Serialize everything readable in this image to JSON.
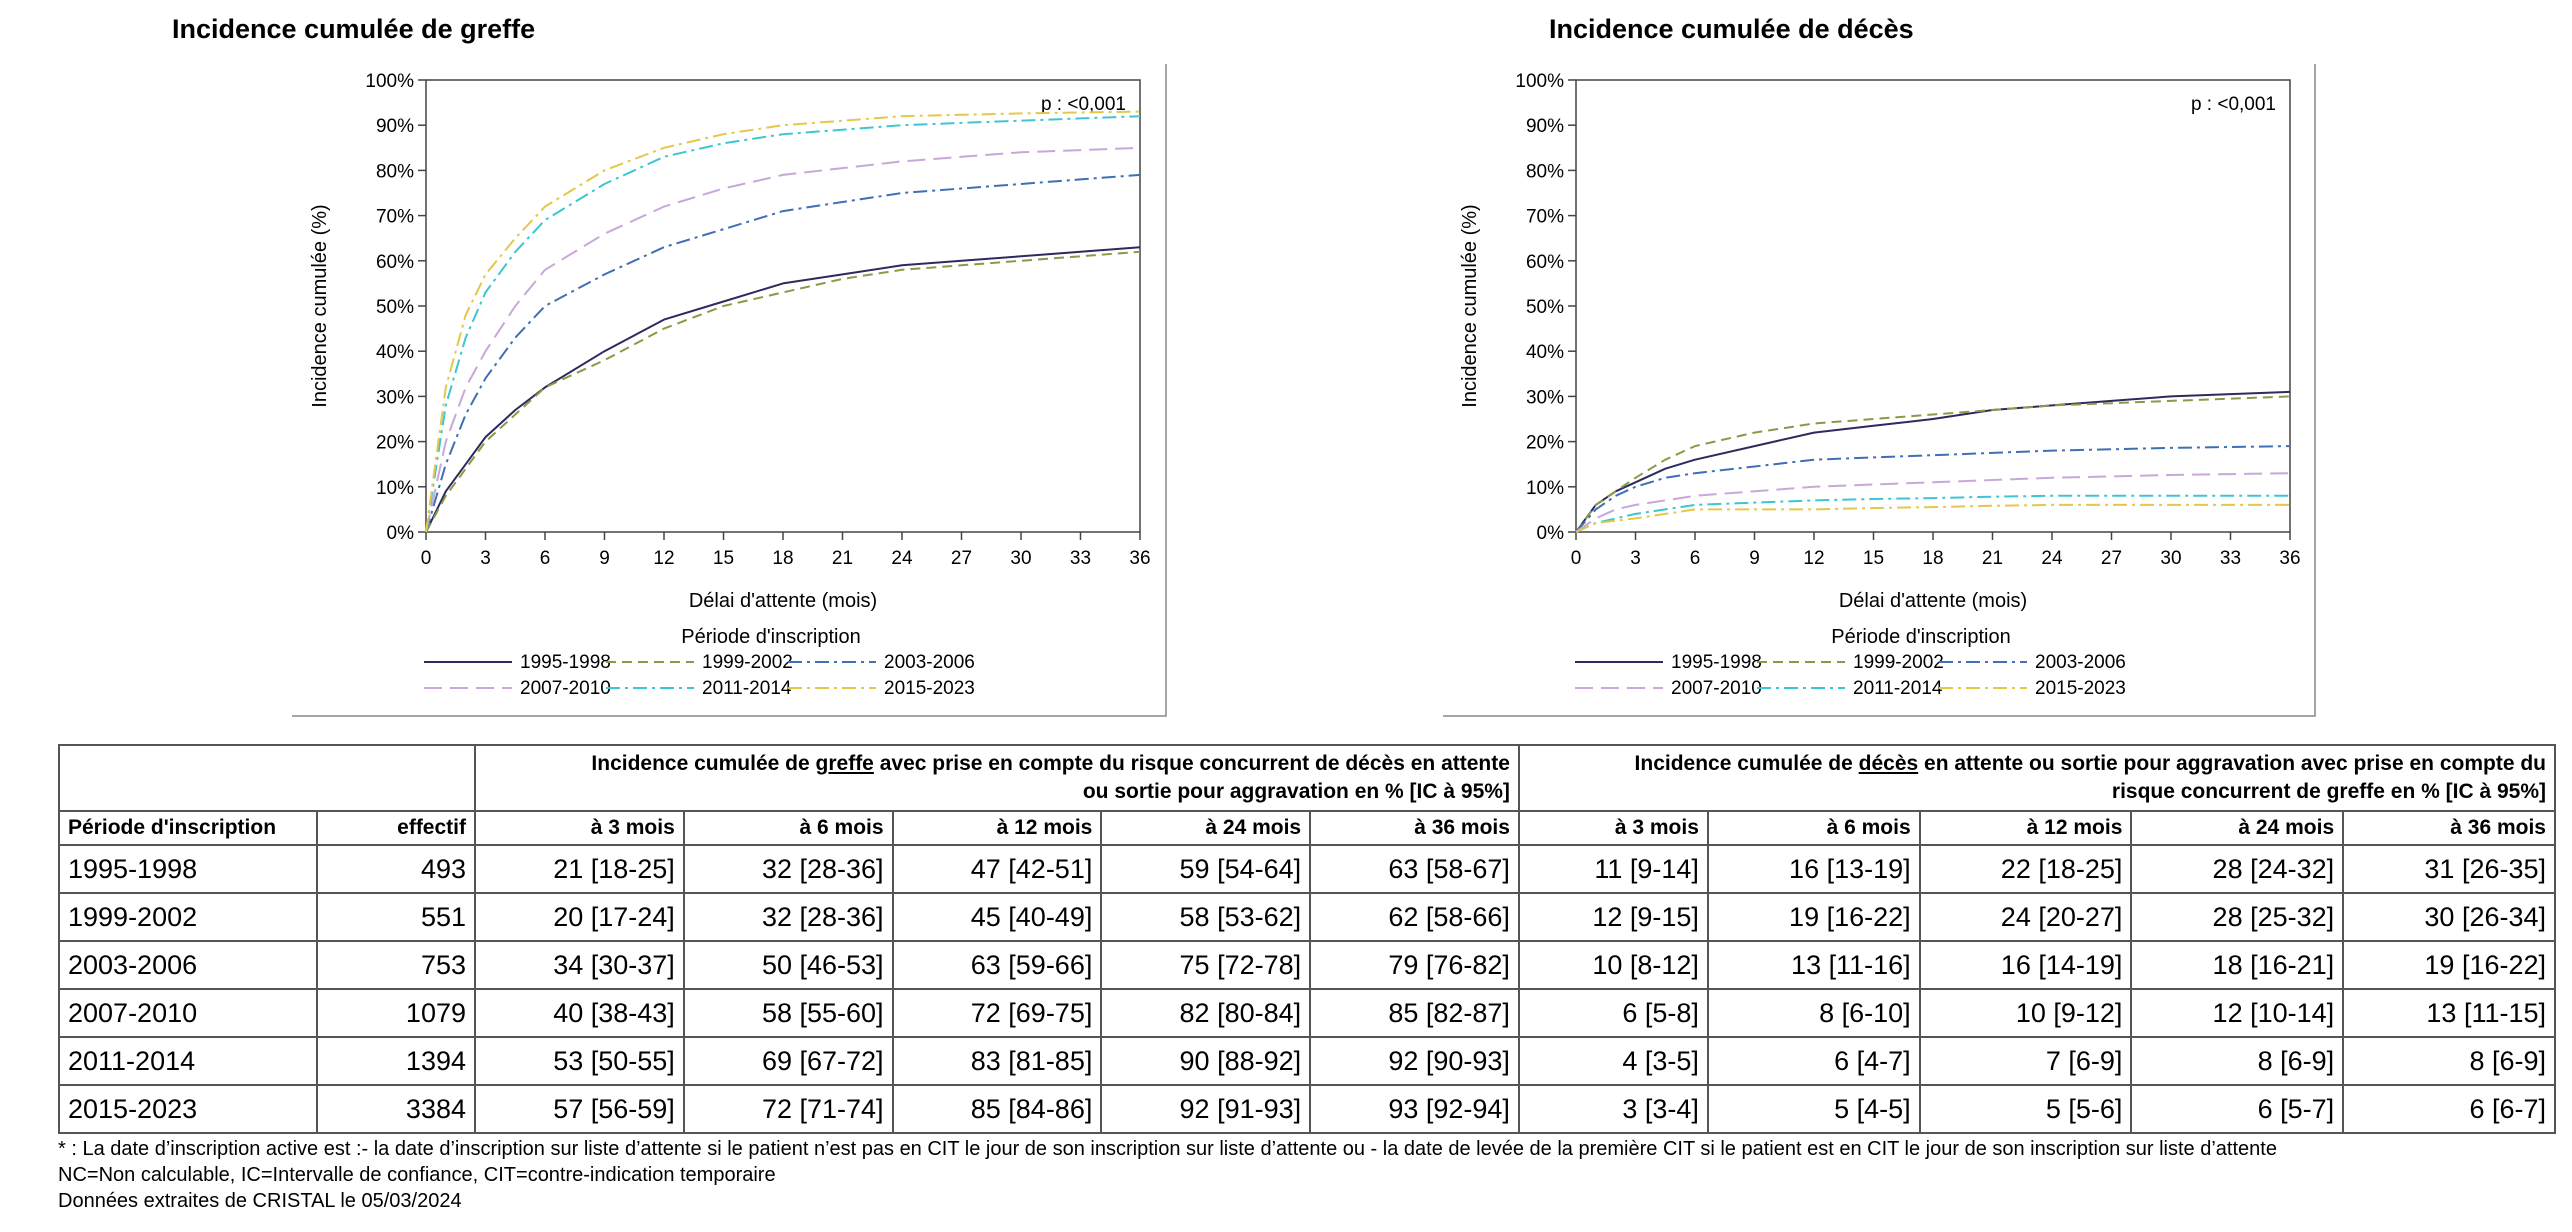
{
  "chart_data": [
    {
      "type": "line",
      "title": "Incidence cumulée de greffe",
      "xlabel": "Délai d'attente (mois)",
      "ylabel": "Incidence cumulée (%)",
      "annotation": "p : <0,001",
      "xlim": [
        0,
        36
      ],
      "ylim": [
        0,
        100
      ],
      "xticks": [
        "0",
        "3",
        "6",
        "9",
        "12",
        "15",
        "18",
        "21",
        "24",
        "27",
        "30",
        "33",
        "36"
      ],
      "yticks": [
        "0%",
        "10%",
        "20%",
        "30%",
        "40%",
        "50%",
        "60%",
        "70%",
        "80%",
        "90%",
        "100%"
      ],
      "legend_title": "Période d'inscription",
      "legend_placement": "bottom",
      "x": [
        0,
        1,
        2,
        3,
        4.5,
        6,
        9,
        12,
        15,
        18,
        21,
        24,
        27,
        30,
        33,
        36
      ],
      "series": [
        {
          "name": "1995-1998",
          "color": "#2b2b5e",
          "dash": "solid",
          "values": [
            0,
            9,
            15,
            21,
            27,
            32,
            40,
            47,
            51,
            55,
            57,
            59,
            60,
            61,
            62,
            63
          ]
        },
        {
          "name": "1999-2002",
          "color": "#8a9a45",
          "dash": "dash",
          "values": [
            0,
            8,
            14,
            20,
            26,
            32,
            38,
            45,
            50,
            53,
            56,
            58,
            59,
            60,
            61,
            62
          ]
        },
        {
          "name": "2003-2006",
          "color": "#3f6fb5",
          "dash": "dashdot",
          "values": [
            0,
            15,
            26,
            34,
            43,
            50,
            57,
            63,
            67,
            71,
            73,
            75,
            76,
            77,
            78,
            79
          ]
        },
        {
          "name": "2007-2010",
          "color": "#c8a8d8",
          "dash": "longdash",
          "values": [
            0,
            20,
            32,
            40,
            50,
            58,
            66,
            72,
            76,
            79,
            80.5,
            82,
            83,
            84,
            84.5,
            85
          ]
        },
        {
          "name": "2011-2014",
          "color": "#3cc6d2",
          "dash": "dashdot",
          "values": [
            0,
            28,
            43,
            53,
            62,
            69,
            77,
            83,
            86,
            88,
            89,
            90,
            90.5,
            91,
            91.5,
            92
          ]
        },
        {
          "name": "2015-2023",
          "color": "#e3c84a",
          "dash": "dashdot",
          "values": [
            0,
            32,
            48,
            57,
            65,
            72,
            80,
            85,
            88,
            90,
            91,
            92,
            92.3,
            92.6,
            92.8,
            93
          ]
        }
      ]
    },
    {
      "type": "line",
      "title": "Incidence cumulée de décès",
      "xlabel": "Délai d'attente (mois)",
      "ylabel": "Incidence cumulée (%)",
      "annotation": "p : <0,001",
      "xlim": [
        0,
        36
      ],
      "ylim": [
        0,
        100
      ],
      "xticks": [
        "0",
        "3",
        "6",
        "9",
        "12",
        "15",
        "18",
        "21",
        "24",
        "27",
        "30",
        "33",
        "36"
      ],
      "yticks": [
        "0%",
        "10%",
        "20%",
        "30%",
        "40%",
        "50%",
        "60%",
        "70%",
        "80%",
        "90%",
        "100%"
      ],
      "legend_title": "Période d'inscription",
      "legend_placement": "bottom",
      "x": [
        0,
        1,
        2,
        3,
        4.5,
        6,
        9,
        12,
        15,
        18,
        21,
        24,
        27,
        30,
        33,
        36
      ],
      "series": [
        {
          "name": "1995-1998",
          "color": "#2b2b5e",
          "dash": "solid",
          "values": [
            0,
            6,
            9,
            11,
            14,
            16,
            19,
            22,
            23.5,
            25,
            27,
            28,
            29,
            30,
            30.5,
            31
          ]
        },
        {
          "name": "1999-2002",
          "color": "#8a9a45",
          "dash": "dash",
          "values": [
            0,
            6,
            9,
            12,
            16,
            19,
            22,
            24,
            25,
            26,
            27,
            28,
            28.5,
            29,
            29.5,
            30
          ]
        },
        {
          "name": "2003-2006",
          "color": "#3f6fb5",
          "dash": "dashdot",
          "values": [
            0,
            5,
            8,
            10,
            12,
            13,
            14.5,
            16,
            16.5,
            17,
            17.5,
            18,
            18.3,
            18.6,
            18.8,
            19
          ]
        },
        {
          "name": "2007-2010",
          "color": "#c8a8d8",
          "dash": "longdash",
          "values": [
            0,
            3,
            5,
            6,
            7,
            8,
            9,
            10,
            10.5,
            11,
            11.5,
            12,
            12.3,
            12.6,
            12.8,
            13
          ]
        },
        {
          "name": "2011-2014",
          "color": "#3cc6d2",
          "dash": "dashdot",
          "values": [
            0,
            2,
            3,
            4,
            5,
            6,
            6.5,
            7,
            7.3,
            7.5,
            7.8,
            8,
            8,
            8,
            8,
            8
          ]
        },
        {
          "name": "2015-2023",
          "color": "#e3c84a",
          "dash": "dashdot",
          "values": [
            0,
            2,
            2.5,
            3,
            4,
            5,
            5,
            5,
            5.3,
            5.5,
            5.8,
            6,
            6,
            6,
            6,
            6
          ]
        }
      ]
    }
  ],
  "table": {
    "header_period": "Période d'inscription",
    "header_effectif": "effectif",
    "group_graft": {
      "line1_pre": "Incidence cumulée de ",
      "line1_word": "greffe",
      "line1_post": " avec prise en compte du risque concurrent de décès en attente",
      "line2": "ou sortie pour aggravation en % [IC à 95%]"
    },
    "group_death": {
      "line1_pre": "Incidence cumulée de ",
      "line1_word": "décès",
      "line1_post": " en attente ou sortie pour aggravation avec prise en compte du",
      "line2": "risque concurrent de greffe en % [IC à 95%]"
    },
    "timepoints": [
      "à 3 mois",
      "à 6 mois",
      "à 12 mois",
      "à 24 mois",
      "à 36 mois"
    ],
    "rows": [
      {
        "period": "1995-1998",
        "effectif": "493",
        "graft": [
          "21 [18-25]",
          "32 [28-36]",
          "47 [42-51]",
          "59 [54-64]",
          "63 [58-67]"
        ],
        "death": [
          "11 [9-14]",
          "16 [13-19]",
          "22 [18-25]",
          "28 [24-32]",
          "31 [26-35]"
        ]
      },
      {
        "period": "1999-2002",
        "effectif": "551",
        "graft": [
          "20 [17-24]",
          "32 [28-36]",
          "45 [40-49]",
          "58 [53-62]",
          "62 [58-66]"
        ],
        "death": [
          "12 [9-15]",
          "19 [16-22]",
          "24 [20-27]",
          "28 [25-32]",
          "30 [26-34]"
        ]
      },
      {
        "period": "2003-2006",
        "effectif": "753",
        "graft": [
          "34 [30-37]",
          "50 [46-53]",
          "63 [59-66]",
          "75 [72-78]",
          "79 [76-82]"
        ],
        "death": [
          "10 [8-12]",
          "13 [11-16]",
          "16 [14-19]",
          "18 [16-21]",
          "19 [16-22]"
        ]
      },
      {
        "period": "2007-2010",
        "effectif": "1079",
        "graft": [
          "40 [38-43]",
          "58 [55-60]",
          "72 [69-75]",
          "82 [80-84]",
          "85 [82-87]"
        ],
        "death": [
          "6 [5-8]",
          "8 [6-10]",
          "10 [9-12]",
          "12 [10-14]",
          "13 [11-15]"
        ]
      },
      {
        "period": "2011-2014",
        "effectif": "1394",
        "graft": [
          "53 [50-55]",
          "69 [67-72]",
          "83 [81-85]",
          "90 [88-92]",
          "92 [90-93]"
        ],
        "death": [
          "4 [3-5]",
          "6 [4-7]",
          "7 [6-9]",
          "8 [6-9]",
          "8 [6-9]"
        ]
      },
      {
        "period": "2015-2023",
        "effectif": "3384",
        "graft": [
          "57 [56-59]",
          "72 [71-74]",
          "85 [84-86]",
          "92 [91-93]",
          "93 [92-94]"
        ],
        "death": [
          "3 [3-4]",
          "5 [4-5]",
          "5 [5-6]",
          "6 [5-7]",
          "6 [6-7]"
        ]
      }
    ]
  },
  "footnotes": [
    "*  : La date d’inscription active est :- la date d’inscription sur liste d’attente si le patient n’est pas en CIT le jour de son inscription sur liste d’attente ou - la date de levée de la première CIT si le patient est en CIT le jour de son inscription sur liste d’attente",
    "NC=Non calculable, IC=Intervalle de confiance, CIT=contre-indication temporaire",
    "Données extraites de CRISTAL le 05/03/2024"
  ]
}
